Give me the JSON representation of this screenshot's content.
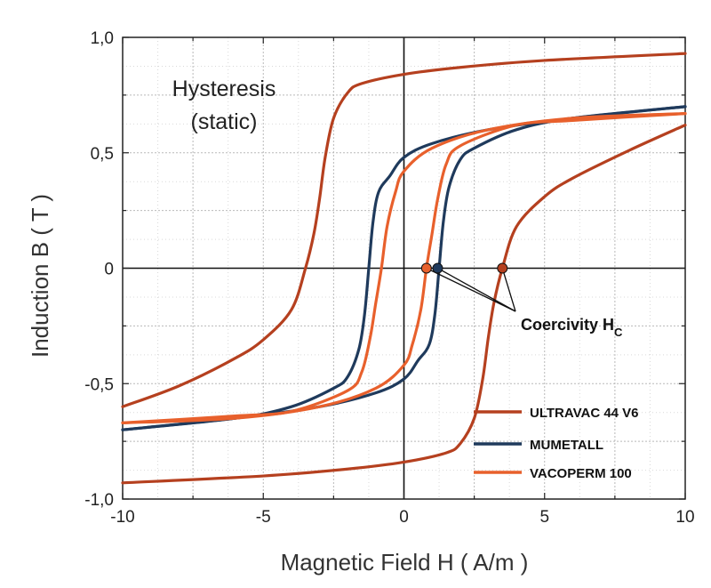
{
  "chart_data": {
    "type": "line",
    "title": "",
    "annotation_title": [
      "Hysteresis",
      "(static)"
    ],
    "xlabel": "Magnetic Field H ( A/m )",
    "ylabel": "Induction B ( T )",
    "xlim": [
      -10,
      10
    ],
    "ylim": [
      -1.0,
      1.0
    ],
    "x_ticks": [
      -10,
      -5,
      0,
      5,
      10
    ],
    "x_tick_labels": [
      "-10",
      "-5",
      "0",
      "5",
      "10"
    ],
    "y_ticks": [
      -1.0,
      -0.5,
      0,
      0.5,
      1.0
    ],
    "y_tick_labels": [
      "-1,0",
      "-0,5",
      "0",
      "0,5",
      "1,0"
    ],
    "grid": true,
    "legend_position": "bottom-right",
    "coercivity_label": "Coercivity H",
    "coercivity_subscript": "C",
    "series": [
      {
        "name": "ULTRAVAC 44 V6",
        "color": "#b5401f",
        "coercivity": 3.5,
        "upper": [
          [
            -10,
            -0.6
          ],
          [
            -8,
            -0.51
          ],
          [
            -6,
            -0.39
          ],
          [
            -5,
            -0.31
          ],
          [
            -4,
            -0.18
          ],
          [
            -3.5,
            0.0
          ],
          [
            -3.2,
            0.15
          ],
          [
            -3,
            0.3
          ],
          [
            -2.8,
            0.48
          ],
          [
            -2.5,
            0.65
          ],
          [
            -2,
            0.76
          ],
          [
            -1.5,
            0.8
          ],
          [
            0,
            0.84
          ],
          [
            2,
            0.87
          ],
          [
            5,
            0.9
          ],
          [
            10,
            0.93
          ]
        ],
        "lower": [
          [
            -10,
            -0.93
          ],
          [
            -5,
            -0.9
          ],
          [
            -2,
            -0.87
          ],
          [
            0,
            -0.84
          ],
          [
            1.5,
            -0.8
          ],
          [
            2,
            -0.76
          ],
          [
            2.5,
            -0.65
          ],
          [
            2.8,
            -0.48
          ],
          [
            3,
            -0.3
          ],
          [
            3.2,
            -0.15
          ],
          [
            3.5,
            0.0
          ],
          [
            4,
            0.18
          ],
          [
            5,
            0.31
          ],
          [
            6,
            0.39
          ],
          [
            8,
            0.51
          ],
          [
            10,
            0.62
          ]
        ]
      },
      {
        "name": "MUMETALL",
        "color": "#1f3a5c",
        "coercivity": 1.2,
        "upper": [
          [
            -10,
            -0.7
          ],
          [
            -6,
            -0.65
          ],
          [
            -4,
            -0.6
          ],
          [
            -2.5,
            -0.52
          ],
          [
            -2,
            -0.47
          ],
          [
            -1.6,
            -0.35
          ],
          [
            -1.4,
            -0.2
          ],
          [
            -1.25,
            0.0
          ],
          [
            -1.1,
            0.2
          ],
          [
            -0.9,
            0.33
          ],
          [
            -0.5,
            0.4
          ],
          [
            0,
            0.48
          ],
          [
            1,
            0.54
          ],
          [
            3,
            0.6
          ],
          [
            6,
            0.65
          ],
          [
            10,
            0.7
          ]
        ],
        "lower": [
          [
            -10,
            -0.7
          ],
          [
            -6,
            -0.65
          ],
          [
            -3,
            -0.6
          ],
          [
            -1,
            -0.54
          ],
          [
            0,
            -0.48
          ],
          [
            0.5,
            -0.4
          ],
          [
            0.9,
            -0.33
          ],
          [
            1.1,
            -0.2
          ],
          [
            1.25,
            0.0
          ],
          [
            1.4,
            0.2
          ],
          [
            1.6,
            0.35
          ],
          [
            2,
            0.47
          ],
          [
            2.5,
            0.52
          ],
          [
            4,
            0.6
          ],
          [
            6,
            0.65
          ],
          [
            10,
            0.7
          ]
        ]
      },
      {
        "name": "VACOPERM 100",
        "color": "#e8602c",
        "coercivity": 0.8,
        "upper": [
          [
            -10,
            -0.67
          ],
          [
            -6,
            -0.64
          ],
          [
            -4,
            -0.62
          ],
          [
            -2,
            -0.53
          ],
          [
            -1.5,
            -0.45
          ],
          [
            -1.2,
            -0.3
          ],
          [
            -1,
            -0.15
          ],
          [
            -0.8,
            0.0
          ],
          [
            -0.6,
            0.18
          ],
          [
            -0.3,
            0.33
          ],
          [
            0,
            0.42
          ],
          [
            1,
            0.52
          ],
          [
            3,
            0.6
          ],
          [
            6,
            0.65
          ],
          [
            10,
            0.67
          ]
        ],
        "lower": [
          [
            -10,
            -0.67
          ],
          [
            -6,
            -0.65
          ],
          [
            -3,
            -0.6
          ],
          [
            -1,
            -0.52
          ],
          [
            0,
            -0.42
          ],
          [
            0.3,
            -0.33
          ],
          [
            0.6,
            -0.18
          ],
          [
            0.8,
            0.0
          ],
          [
            1,
            0.15
          ],
          [
            1.2,
            0.3
          ],
          [
            1.5,
            0.45
          ],
          [
            2,
            0.53
          ],
          [
            4,
            0.62
          ],
          [
            6,
            0.64
          ],
          [
            10,
            0.67
          ]
        ]
      }
    ]
  }
}
